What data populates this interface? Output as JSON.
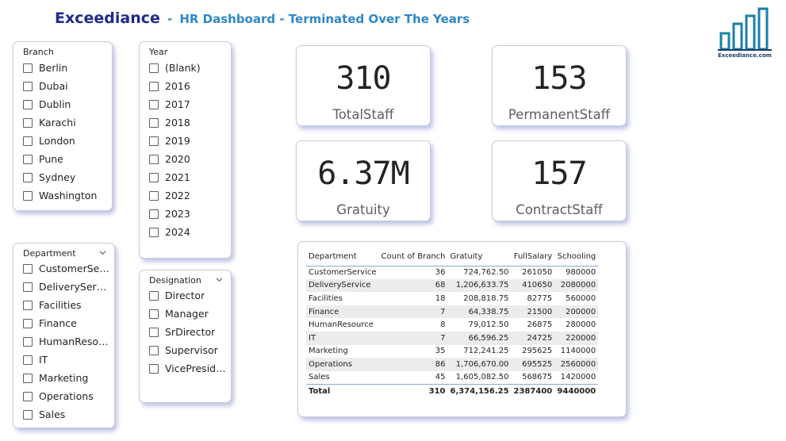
{
  "header": {
    "brand": "Exceediance",
    "separator": "-",
    "subtitle": "HR Dashboard - Terminated Over The Years"
  },
  "logo": {
    "text": "Exceediance.com",
    "icon": "bar-chart-logo-icon",
    "color": "#1a7fa8"
  },
  "slicers": {
    "branch": {
      "title": "Branch",
      "items": [
        "Berlin",
        "Dubai",
        "Dublin",
        "Karachi",
        "London",
        "Pune",
        "Sydney",
        "Washington"
      ]
    },
    "year": {
      "title": "Year",
      "items": [
        "(Blank)",
        "2016",
        "2017",
        "2018",
        "2019",
        "2020",
        "2021",
        "2022",
        "2023",
        "2024"
      ]
    },
    "department": {
      "title": "Department",
      "items": [
        "CustomerServ...",
        "DeliveryService",
        "Facilities",
        "Finance",
        "HumanResour...",
        "IT",
        "Marketing",
        "Operations",
        "Sales"
      ]
    },
    "designation": {
      "title": "Designation",
      "items": [
        "Director",
        "Manager",
        "SrDirector",
        "Supervisor",
        "VicePresident"
      ]
    }
  },
  "cards": {
    "total_staff": {
      "value": "310",
      "label": "TotalStaff"
    },
    "permanent_staff": {
      "value": "153",
      "label": "PermanentStaff"
    },
    "gratuity": {
      "value": "6.37M",
      "label": "Gratuity"
    },
    "contract_staff": {
      "value": "157",
      "label": "ContractStaff"
    }
  },
  "table": {
    "columns": [
      "Department",
      "Count of Branch",
      "Gratuity",
      "FullSalary",
      "Schooling"
    ],
    "rows": [
      [
        "CustomerService",
        "36",
        "724,762.50",
        "261050",
        "980000"
      ],
      [
        "DeliveryService",
        "68",
        "1,206,633.75",
        "410650",
        "2080000"
      ],
      [
        "Facilities",
        "18",
        "208,818.75",
        "82775",
        "560000"
      ],
      [
        "Finance",
        "7",
        "64,338.75",
        "21500",
        "200000"
      ],
      [
        "HumanResource",
        "8",
        "79,012.50",
        "26875",
        "280000"
      ],
      [
        "IT",
        "7",
        "66,596.25",
        "24725",
        "220000"
      ],
      [
        "Marketing",
        "35",
        "712,241.25",
        "295625",
        "1140000"
      ],
      [
        "Operations",
        "86",
        "1,706,670.00",
        "695525",
        "2560000"
      ],
      [
        "Sales",
        "45",
        "1,605,082.50",
        "568675",
        "1420000"
      ]
    ],
    "total": [
      "Total",
      "310",
      "6,374,156.25",
      "2387400",
      "9440000"
    ]
  },
  "colors": {
    "brand": "#1f2a8a",
    "subtitle": "#2e88c7",
    "panel_shadow": "#6e78c8",
    "row_alt": "#ececec"
  }
}
